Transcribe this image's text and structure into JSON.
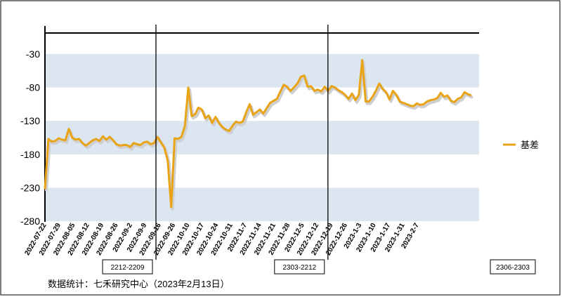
{
  "chart_data": {
    "type": "line",
    "ylim": [
      -280,
      -10
    ],
    "yticks": [
      -30,
      -80,
      -130,
      -180,
      -230,
      -280
    ],
    "grid": false,
    "legend_position": "right",
    "x_tick_labels": [
      "2022-07-22",
      "2022-07-29",
      "2022-08-05",
      "2022-08-12",
      "2022-08-19",
      "2022-08-26",
      "2022-09-2",
      "2022-09-9",
      "2022-09-16",
      "2022-09-26",
      "2022-10-10",
      "2022-10-17",
      "2022-10-24",
      "2022-10-31",
      "2022-11-7",
      "2022-11-14",
      "2022-11-21",
      "2022-11-28",
      "2022-12-5",
      "2022-12-12",
      "2022-12-19",
      "2022-12-26",
      "2023-1-3",
      "2023-1-10",
      "2023-1-17",
      "2023-1-31",
      "2023-2-7"
    ],
    "series": [
      {
        "name": "基差",
        "color": "#E8A317",
        "values": [
          -232,
          -157,
          -161,
          -160,
          -156,
          -158,
          -159,
          -142,
          -155,
          -158,
          -157,
          -163,
          -167,
          -163,
          -159,
          -157,
          -160,
          -153,
          -158,
          -154,
          -159,
          -165,
          -167,
          -166,
          -166,
          -169,
          -163,
          -165,
          -166,
          -162,
          -161,
          -165,
          -163,
          -154,
          -162,
          -170,
          -190,
          -259,
          -156,
          -157,
          -154,
          -138,
          -80,
          -123,
          -120,
          -110,
          -113,
          -126,
          -122,
          -133,
          -124,
          -133,
          -139,
          -143,
          -145,
          -137,
          -131,
          -133,
          -131,
          -117,
          -105,
          -121,
          -117,
          -113,
          -119,
          -111,
          -103,
          -100,
          -97,
          -86,
          -76,
          -79,
          -85,
          -80,
          -74,
          -64,
          -62,
          -79,
          -78,
          -85,
          -83,
          -86,
          -79,
          -85,
          -78,
          -80,
          -84,
          -87,
          -91,
          -97,
          -89,
          -99,
          -91,
          -39,
          -101,
          -101,
          -94,
          -85,
          -74,
          -82,
          -87,
          -98,
          -85,
          -91,
          -101,
          -103,
          -105,
          -107,
          -108,
          -104,
          -106,
          -105,
          -101,
          -99,
          -98,
          -96,
          -88,
          -94,
          -92,
          -100,
          -102,
          -97,
          -95,
          -87,
          -90,
          -92
        ]
      }
    ],
    "vertical_markers": [
      {
        "label": "2212-2209",
        "after_x_tick": "2022-09-9"
      },
      {
        "label": "2303-2212",
        "after_x_tick": "2022-12-12"
      }
    ],
    "extra_label": "2306-2303",
    "source_note": "数据统计：七禾研究中心（2023年2月13日）"
  }
}
